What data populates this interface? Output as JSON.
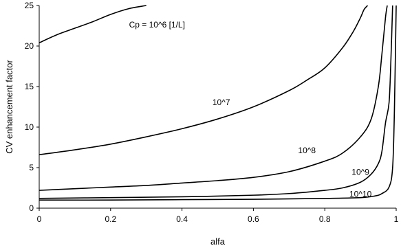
{
  "chart_data": {
    "type": "line",
    "xlabel": "alfa",
    "ylabel": "CV enhancement factor",
    "xlim": [
      0,
      1
    ],
    "ylim": [
      0,
      25
    ],
    "x_ticks": [
      0,
      0.2,
      0.4,
      0.6,
      0.8,
      1
    ],
    "x_tick_labels": [
      "0",
      "0.2",
      "0.4",
      "0.6",
      "0.8",
      "1"
    ],
    "y_ticks": [
      0,
      5,
      10,
      15,
      20,
      25
    ],
    "y_tick_labels": [
      "0",
      "5",
      "10",
      "15",
      "20",
      "25"
    ],
    "grid": false,
    "legend": "none",
    "series": [
      {
        "name": "Cp = 10^6 [1/L]",
        "x": [
          0,
          0.05,
          0.1,
          0.15,
          0.2,
          0.25,
          0.3
        ],
        "y": [
          20.4,
          21.4,
          22.2,
          23.0,
          23.9,
          24.6,
          25.0
        ]
      },
      {
        "name": "10^7",
        "x": [
          0,
          0.1,
          0.2,
          0.3,
          0.4,
          0.5,
          0.6,
          0.7,
          0.75,
          0.8,
          0.85,
          0.88,
          0.9,
          0.91,
          0.92
        ],
        "y": [
          6.6,
          7.2,
          7.9,
          8.8,
          9.8,
          11.0,
          12.5,
          14.5,
          15.8,
          17.3,
          19.8,
          21.8,
          23.5,
          24.5,
          25.0
        ]
      },
      {
        "name": "10^8",
        "x": [
          0,
          0.1,
          0.2,
          0.3,
          0.4,
          0.5,
          0.6,
          0.7,
          0.8,
          0.85,
          0.9,
          0.93,
          0.95,
          0.96,
          0.97,
          0.975
        ],
        "y": [
          2.2,
          2.4,
          2.6,
          2.8,
          3.1,
          3.4,
          3.8,
          4.5,
          5.8,
          6.8,
          8.8,
          11.0,
          15.0,
          19.0,
          23.5,
          25.0
        ]
      },
      {
        "name": "10^9",
        "x": [
          0,
          0.2,
          0.4,
          0.6,
          0.7,
          0.8,
          0.85,
          0.9,
          0.93,
          0.95,
          0.96,
          0.97,
          0.98,
          0.985,
          0.99
        ],
        "y": [
          1.2,
          1.3,
          1.4,
          1.6,
          1.8,
          2.2,
          2.5,
          3.2,
          4.2,
          5.5,
          7.0,
          10.5,
          13.0,
          18.0,
          25.0
        ]
      },
      {
        "name": "10^10",
        "x": [
          0,
          0.2,
          0.4,
          0.6,
          0.8,
          0.9,
          0.94,
          0.96,
          0.98,
          0.99,
          0.995,
          1.0
        ],
        "y": [
          1.0,
          1.0,
          1.05,
          1.1,
          1.2,
          1.3,
          1.5,
          1.8,
          2.6,
          5.0,
          12.0,
          25.0
        ]
      }
    ],
    "annotations": [
      {
        "text": "Cp = 10^6 [1/L]",
        "series": 0,
        "at_x": 0.33,
        "at_y": 22.3
      },
      {
        "text": "10^7",
        "series": 1,
        "at_x": 0.51,
        "at_y": 12.7
      },
      {
        "text": "10^8",
        "series": 2,
        "at_x": 0.75,
        "at_y": 6.8
      },
      {
        "text": "10^9",
        "series": 3,
        "at_x": 0.9,
        "at_y": 4.1
      },
      {
        "text": "10^10",
        "series": 4,
        "at_x": 0.9,
        "at_y": 1.4
      }
    ]
  }
}
